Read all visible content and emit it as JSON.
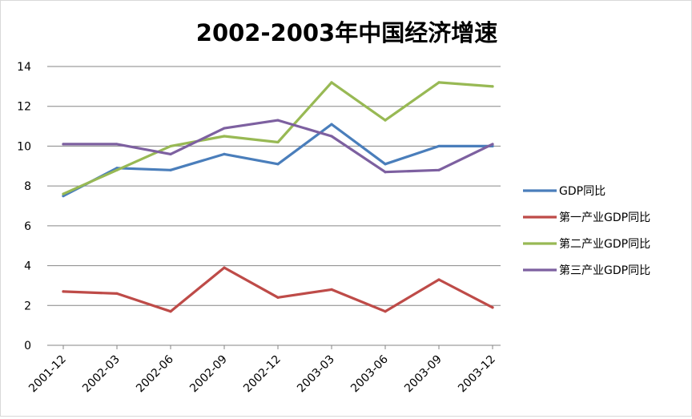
{
  "chart_data": {
    "type": "line",
    "title": "2002-2003年中国经济增速",
    "xlabel": "",
    "ylabel": "",
    "categories": [
      "2001-12",
      "2002-03",
      "2002-06",
      "2002-09",
      "2002-12",
      "2003-03",
      "2003-06",
      "2003-09",
      "2003-12"
    ],
    "ylim": [
      0,
      14
    ],
    "yticks": [
      0,
      2,
      4,
      6,
      8,
      10,
      12,
      14
    ],
    "grid": true,
    "legend_position": "right",
    "series": [
      {
        "name": "GDP同比",
        "color": "#4a7ebb",
        "values": [
          7.5,
          8.9,
          8.8,
          9.6,
          9.1,
          11.1,
          9.1,
          10.0,
          10.0
        ]
      },
      {
        "name": "第一产业GDP同比",
        "color": "#be4b48",
        "values": [
          2.7,
          2.6,
          1.7,
          3.9,
          2.4,
          2.8,
          1.7,
          3.3,
          1.9
        ]
      },
      {
        "name": "第二产业GDP同比",
        "color": "#98b954",
        "values": [
          7.6,
          8.8,
          10.0,
          10.5,
          10.2,
          13.2,
          11.3,
          13.2,
          13.0
        ]
      },
      {
        "name": "第三产业GDP同比",
        "color": "#7d60a0",
        "values": [
          10.1,
          10.1,
          9.6,
          10.9,
          11.3,
          10.5,
          8.7,
          8.8,
          10.1
        ]
      }
    ]
  }
}
